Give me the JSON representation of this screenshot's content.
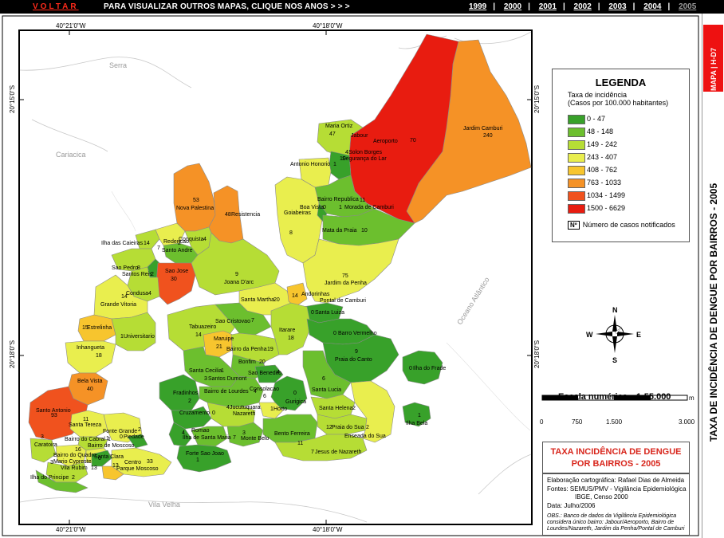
{
  "topbar": {
    "back_label": "VOLTAR",
    "instruction": "PARA VISUALIZAR OUTROS MAPAS, CLIQUE NOS ANOS > > >",
    "years": [
      "1999",
      "2000",
      "2001",
      "2002",
      "2003",
      "2004",
      "2005"
    ],
    "current_year": "2005"
  },
  "map": {
    "coords": {
      "top_left": "40°21'0\"W",
      "top_right": "40°18'0\"W",
      "bottom_left": "40°21'0\"W",
      "bottom_right": "40°18'0\"W",
      "left_upper": "20°15'0\"S",
      "left_lower": "20°18'0\"S",
      "right_upper": "20°15'0\"S",
      "right_lower": "20°18'0\"S"
    },
    "places": {
      "serra": "Serra",
      "cariacica": "Cariacica",
      "vila_velha": "Vila Velha",
      "ocean": "Oceano Atlântico"
    },
    "neighborhoods": [
      {
        "name": "Maria Ortiz",
        "cases": "47"
      },
      {
        "name": "Jabour",
        "cases": ""
      },
      {
        "name": "Aeroporto",
        "cases": "70"
      },
      {
        "name": "Jardim Camburi",
        "cases": "240"
      },
      {
        "name": "Solon Borges",
        "cases": "4"
      },
      {
        "name": "Segurança do Lar",
        "cases": "10"
      },
      {
        "name": "Antonio Honorio",
        "cases": "1"
      },
      {
        "name": "Bairro Republica",
        "cases": "11"
      },
      {
        "name": "Boa Vista",
        "cases": "0"
      },
      {
        "name": "Morada de Camburi",
        "cases": "1"
      },
      {
        "name": "Goiabeiras",
        "cases": "8"
      },
      {
        "name": "Mata da Praia",
        "cases": "10"
      },
      {
        "name": "Nova Palestina",
        "cases": "53"
      },
      {
        "name": "Resistencia",
        "cases": "48"
      },
      {
        "name": "Ilha das Caieiras",
        "cases": "14"
      },
      {
        "name": "Redencao",
        "cases": "2"
      },
      {
        "name": "Conquista",
        "cases": "4"
      },
      {
        "name": "Santo Andre",
        "cases": "7"
      },
      {
        "name": "Sao Pedro",
        "cases": "8"
      },
      {
        "name": "Santos Reis",
        "cases": "2"
      },
      {
        "name": "Sao Jose",
        "cases": "30"
      },
      {
        "name": "Joana D'arc",
        "cases": "9"
      },
      {
        "name": "Jardim da Penha",
        "cases": "75"
      },
      {
        "name": "Condusa",
        "cases": "4"
      },
      {
        "name": "Grande Vitoria",
        "cases": "14"
      },
      {
        "name": "Santa Martha",
        "cases": "20"
      },
      {
        "name": "Andorinhas",
        "cases": "14"
      },
      {
        "name": "Pontal de Camburi",
        "cases": ""
      },
      {
        "name": "Santa Luiza",
        "cases": "0"
      },
      {
        "name": "Estrelinha",
        "cases": "15"
      },
      {
        "name": "Universitario",
        "cases": "1"
      },
      {
        "name": "Sao Cristovao",
        "cases": "7"
      },
      {
        "name": "Tabuazeiro",
        "cases": "14"
      },
      {
        "name": "Maruipe",
        "cases": "21"
      },
      {
        "name": "Itarare",
        "cases": "18"
      },
      {
        "name": "Barro Vermelho",
        "cases": "0"
      },
      {
        "name": "Inhangueta",
        "cases": "18"
      },
      {
        "name": "Bairro da Penha",
        "cases": "19"
      },
      {
        "name": "Bonfim",
        "cases": "20"
      },
      {
        "name": "Praia do Canto",
        "cases": "9"
      },
      {
        "name": "Ilha do Frade",
        "cases": "0"
      },
      {
        "name": "Santa Cecilia",
        "cases": "1"
      },
      {
        "name": "Santos Dumont",
        "cases": "3"
      },
      {
        "name": "Sao Benedito",
        "cases": "4"
      },
      {
        "name": "Bela Vista",
        "cases": "40"
      },
      {
        "name": "Fradinhos",
        "cases": "2"
      },
      {
        "name": "Bairro de Lourdes",
        "cases": "4"
      },
      {
        "name": "Consolacao",
        "cases": "6"
      },
      {
        "name": "Gurigica",
        "cases": "0"
      },
      {
        "name": "Santa Lucia",
        "cases": "6"
      },
      {
        "name": "Cruzamento",
        "cases": "0"
      },
      {
        "name": "Jucutuquara",
        "cases": "4"
      },
      {
        "name": "Nazareth",
        "cases": ""
      },
      {
        "name": "Horto",
        "cases": "1"
      },
      {
        "name": "Santa Helena",
        "cases": "2"
      },
      {
        "name": "Santo Antonio",
        "cases": "93"
      },
      {
        "name": "Santa Tereza",
        "cases": "11"
      },
      {
        "name": "Romao",
        "cases": "4"
      },
      {
        "name": "Ilha de Santa Maria",
        "cases": "7"
      },
      {
        "name": "Monte Belo",
        "cases": "3"
      },
      {
        "name": "Bento Ferreira",
        "cases": "11"
      },
      {
        "name": "Praia do Sua",
        "cases": "12"
      },
      {
        "name": "Enseada do Sua",
        "cases": "2"
      },
      {
        "name": "Ilha Bela",
        "cases": "1"
      },
      {
        "name": "Fonte Grande",
        "cases": "2"
      },
      {
        "name": "Piedade",
        "cases": "0"
      },
      {
        "name": "Caratoira",
        "cases": "3"
      },
      {
        "name": "Bairro do Cabral",
        "cases": "1"
      },
      {
        "name": "Bairro do Quadro",
        "cases": "16"
      },
      {
        "name": "Bairro de Moscoso",
        "cases": "1"
      },
      {
        "name": "Mario Cypreste",
        "cases": "3"
      },
      {
        "name": "Santa Clara",
        "cases": "0"
      },
      {
        "name": "Vila Rubim",
        "cases": "13"
      },
      {
        "name": "Centro",
        "cases": "33"
      },
      {
        "name": "Parque Moscoso",
        "cases": "13"
      },
      {
        "name": "Forte Sao Joao",
        "cases": "1"
      },
      {
        "name": "Jesus de Nazareth",
        "cases": "7"
      },
      {
        "name": "Ilha do Principe",
        "cases": "2"
      }
    ],
    "compass": {
      "n": "N",
      "s": "S",
      "e": "E",
      "w": "W"
    }
  },
  "legend": {
    "title": "LEGENDA",
    "subtitle1": "Taxa de incidência",
    "subtitle2": "(Casos por 100.000 habitantes)",
    "classes": [
      {
        "label": "0 - 47",
        "color": "#38a12a"
      },
      {
        "label": "48 - 148",
        "color": "#6cbf2e"
      },
      {
        "label": "149 - 242",
        "color": "#b6dd35"
      },
      {
        "label": "243 - 407",
        "color": "#e9ee4e"
      },
      {
        "label": "408 - 762",
        "color": "#f7c52e"
      },
      {
        "label": "763 - 1033",
        "color": "#f59226"
      },
      {
        "label": "1034 - 1499",
        "color": "#f0521e"
      },
      {
        "label": "1500 - 6629",
        "color": "#e81c10"
      }
    ],
    "number_box": "Nº",
    "number_label": "Número de casos notificados"
  },
  "scale": {
    "label": "Escala numérica",
    "value": "1:55.000",
    "unit": "m",
    "ticks": [
      "0",
      "750",
      "1.500",
      "3.000"
    ]
  },
  "title_box": {
    "line1": "TAXA INCIDÊNCIA DE DENGUE",
    "line2": "POR BAIRROS - 2005"
  },
  "credits": {
    "line1": "Elaboração cartográfica: Rafael Dias de Almeida",
    "line2": "Fontes: SEMUS/PMV - Vigilância Epidemiológica",
    "line3": "IBGE, Censo 2000",
    "line4": "Data: Julho/2006",
    "obs": "OBS.: Banco de dados da Vigilância Epidemiológica considera único bairro: Jabour/Aeroporto, Bairro de Lourdes/Nazareth, Jardim da Penha/Pontal de Camburi"
  },
  "sidebar": {
    "tab_label": "MAPA | H-D7",
    "vertical_title": "TAXA DE INCIDÊNCIA DE DENGUE POR BAIRROS - 2005"
  }
}
